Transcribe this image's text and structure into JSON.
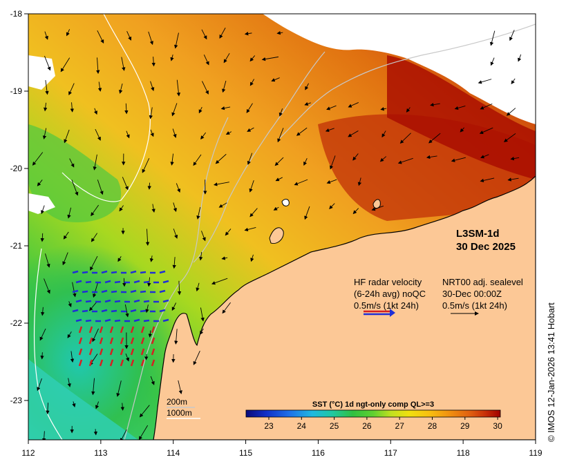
{
  "product": {
    "title_line1": "L3SM-1d",
    "title_line2": "30 Dec 2025"
  },
  "axes": {
    "x_ticks": [
      "112",
      "113",
      "114",
      "115",
      "116",
      "117",
      "118",
      "119"
    ],
    "y_ticks": [
      "-18",
      "-19",
      "-20",
      "-21",
      "-22",
      "-23"
    ]
  },
  "legend_hf": {
    "line1": "HF radar velocity",
    "line2": "(6-24h avg) noQC",
    "line3": "0.5m/s (1kt 24h)",
    "arrow_colors": [
      "#d62020",
      "#1f2fd6"
    ]
  },
  "legend_nrt": {
    "line1": "NRT00 adj. sealevel",
    "line2": "30-Dec 00:00Z",
    "line3": "0.5m/s (1kt 24h)"
  },
  "bathymetry_legend": {
    "contour1": "200m",
    "contour2": "1000m"
  },
  "colorbar": {
    "title": "SST (°C) 1d ngt-only comp QL>=3",
    "ticks": [
      "23",
      "24",
      "25",
      "26",
      "27",
      "28",
      "29",
      "30"
    ],
    "colors": [
      "#0a0a7a",
      "#1030c8",
      "#1e70e8",
      "#20b8e0",
      "#20c8a0",
      "#30c040",
      "#60d030",
      "#c0e020",
      "#f0e010",
      "#f8c010",
      "#f09010",
      "#e06010",
      "#c83008",
      "#a00000"
    ]
  },
  "colors": {
    "land": "#fcc896",
    "coast": "#000000",
    "no_data": "#ffffff"
  },
  "copyright": "© IMOS 12-Jan-2026 13:41 Hobart"
}
